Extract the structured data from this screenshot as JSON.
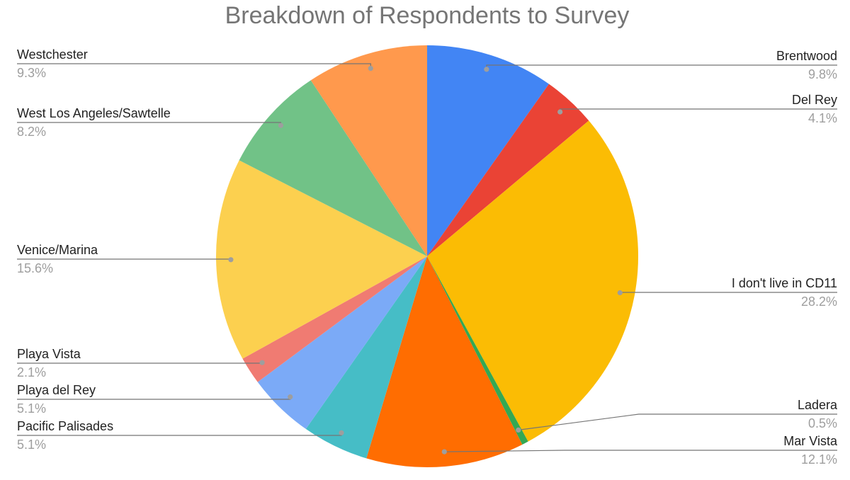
{
  "chart_data": {
    "type": "pie",
    "title": "Breakdown of Respondents to Survey",
    "start_angle_deg": 0,
    "direction": "clockwise",
    "slices": [
      {
        "label": "Brentwood",
        "value": 9.8,
        "display": "9.8%",
        "color": "#4285F4"
      },
      {
        "label": "Del Rey",
        "value": 4.1,
        "display": "4.1%",
        "color": "#EA4335"
      },
      {
        "label": "I don't live in CD11",
        "value": 28.2,
        "display": "28.2%",
        "color": "#FBBC04"
      },
      {
        "label": "Ladera",
        "value": 0.5,
        "display": "0.5%",
        "color": "#34A853"
      },
      {
        "label": "Mar Vista",
        "value": 12.1,
        "display": "12.1%",
        "color": "#FF6D01"
      },
      {
        "label": "Pacific Palisades",
        "value": 5.1,
        "display": "5.1%",
        "color": "#46BDC6"
      },
      {
        "label": "Playa del Rey",
        "value": 5.1,
        "display": "5.1%",
        "color": "#7BAAF7"
      },
      {
        "label": "Playa Vista",
        "value": 2.1,
        "display": "2.1%",
        "color": "#F07B72"
      },
      {
        "label": "Venice/Marina",
        "value": 15.6,
        "display": "15.6%",
        "color": "#FCD04F"
      },
      {
        "label": "West Los Angeles/Sawtelle",
        "value": 8.2,
        "display": "8.2%",
        "color": "#71C287"
      },
      {
        "label": "Westchester",
        "value": 9.3,
        "display": "9.3%",
        "color": "#FF994D"
      }
    ]
  }
}
